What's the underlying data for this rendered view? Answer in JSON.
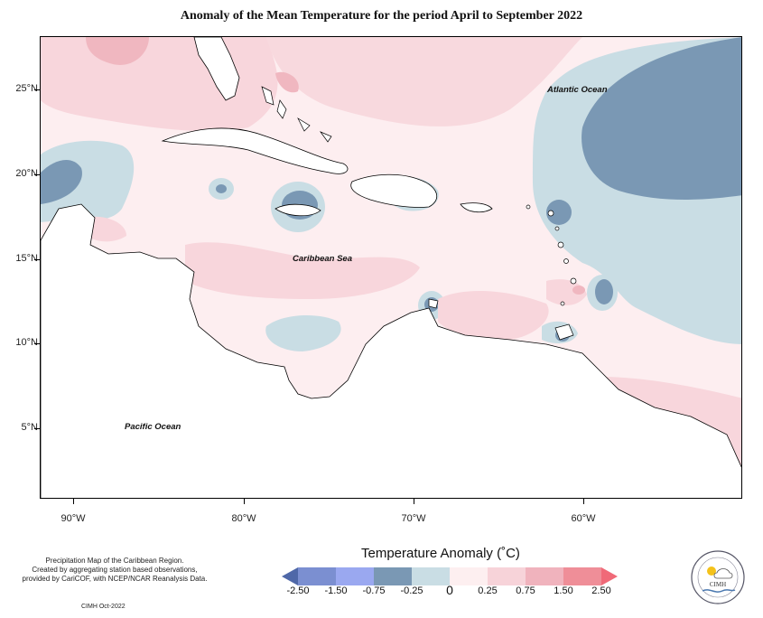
{
  "title": "Anomaly of the Mean Temperature for the period April to September 2022",
  "map": {
    "latitude_labels": [
      "25°N",
      "20°N",
      "15°N",
      "10°N",
      "5°N"
    ],
    "longitude_labels": [
      "90°W",
      "80°W",
      "70°W",
      "60°W"
    ],
    "ocean_labels": {
      "atlantic": "Atlantic Ocean",
      "caribbean": "Caribbean Sea",
      "pacific": "Pacific Ocean"
    }
  },
  "legend": {
    "title": "Temperature Anomaly (˚C)",
    "tick_labels": [
      "-2.50",
      "-1.50",
      "-0.75",
      "-0.25",
      "0",
      "0.25",
      "0.75",
      "1.50",
      "2.50"
    ],
    "colors": [
      "#4f68a8",
      "#7b8fd1",
      "#9aa8f0",
      "#7a98b4",
      "#c9dde4",
      "#fdeff0",
      "#f7d3d9",
      "#f0b3bd",
      "#ef8e98",
      "#f06a78"
    ]
  },
  "note": {
    "line1": "Precipitation Map of the Caribbean Region.",
    "line2": "Created by aggregating station based observations,",
    "line3": "provided by CariCOF, with NCEP/NCAR Reanalysis Data."
  },
  "credit": "CIMH Oct-2022",
  "logo": {
    "text": "CIMH"
  }
}
